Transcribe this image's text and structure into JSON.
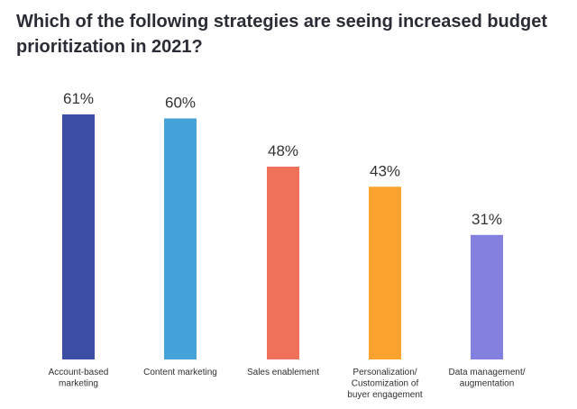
{
  "chart_data": {
    "type": "bar",
    "title": "Which of the following strategies are seeing increased budget prioritization in 2021?",
    "categories": [
      [
        "Account-based",
        "marketing"
      ],
      [
        "Content marketing"
      ],
      [
        "Sales enablement"
      ],
      [
        "Personalization/",
        "Customization of",
        "buyer engagement"
      ],
      [
        "Data management/",
        "augmentation"
      ]
    ],
    "values": [
      61,
      60,
      48,
      43,
      31
    ],
    "value_labels": [
      "61%",
      "60%",
      "48%",
      "43%",
      "31%"
    ],
    "colors": [
      "#3a4fa3",
      "#46a3da",
      "#f07159",
      "#fca22f",
      "#8380e0"
    ],
    "xlabel": "",
    "ylabel": "",
    "ylim": [
      0,
      61
    ],
    "grid": false,
    "legend": "none"
  }
}
